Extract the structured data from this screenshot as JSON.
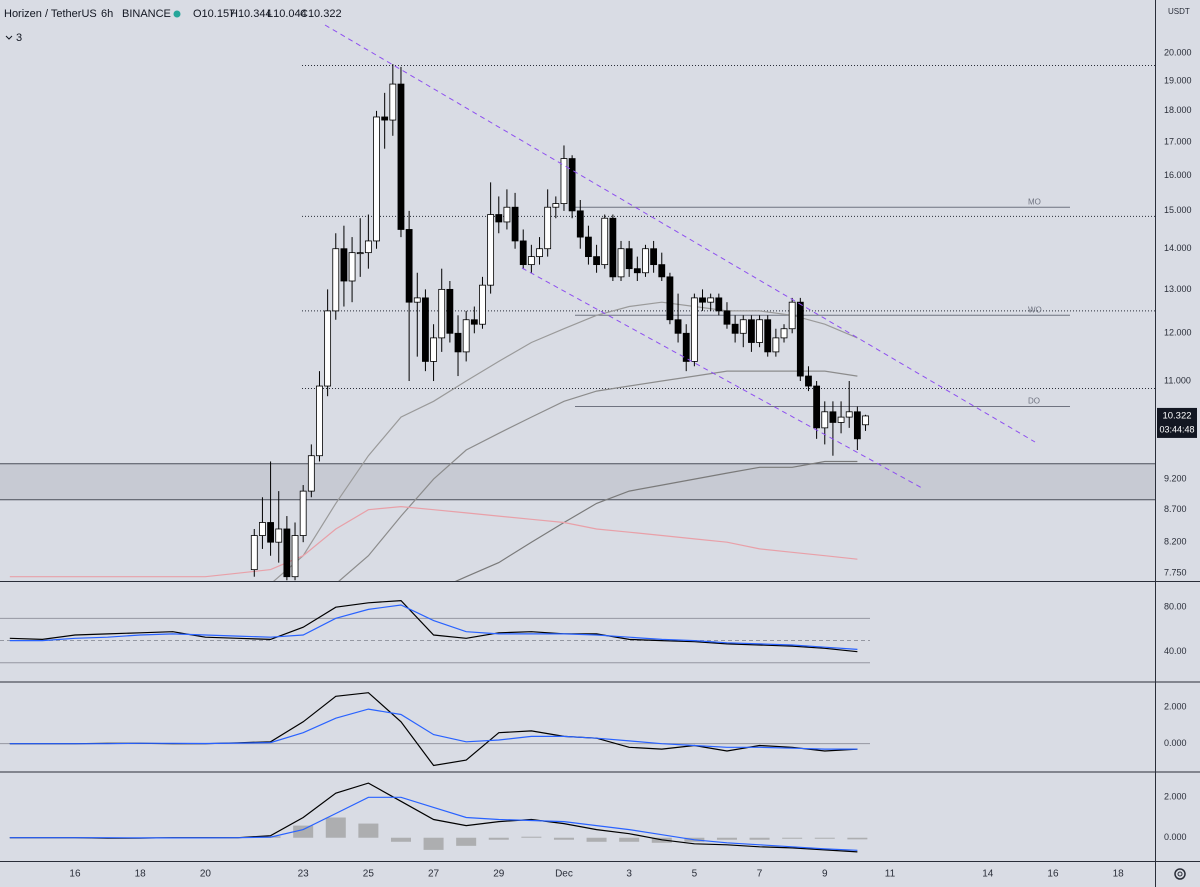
{
  "header": {
    "symbol": "Horizen / TetherUS",
    "interval": "6h",
    "exchange": "BINANCE",
    "ohlc": [
      "O10.157",
      "H10.344",
      "L10.044",
      "C10.322"
    ],
    "indicators_collapsed": "3"
  },
  "chart_data": [
    {
      "type": "candlestick",
      "log_scale": true,
      "up_color": "#ffffff",
      "down_color": "#000000",
      "y_unit": "USDT",
      "xlim": [
        13.7,
        49.13
      ],
      "ylim": [
        7.64,
        22.03
      ],
      "xticks": [
        16,
        18,
        20,
        23,
        25,
        27,
        29,
        {
          "value": 31,
          "label": "Dec"
        },
        {
          "value": 33,
          "label": "3"
        },
        {
          "value": 35,
          "label": "5"
        },
        {
          "value": 37,
          "label": "7"
        },
        {
          "value": 39,
          "label": "9"
        },
        {
          "value": 41,
          "label": "11"
        },
        {
          "value": 44,
          "label": "14"
        },
        {
          "value": 46,
          "label": "16"
        },
        {
          "value": 48,
          "label": "18"
        }
      ],
      "yticks": [
        {
          "value": 7.75,
          "label": "7.750"
        },
        {
          "value": 8.2,
          "label": "8.200"
        },
        {
          "value": 8.7,
          "label": "8.700"
        },
        {
          "value": 9.2,
          "label": "9.200"
        },
        {
          "value": 11,
          "label": "11.000"
        },
        {
          "value": 12,
          "label": "12.000"
        },
        {
          "value": 13,
          "label": "13.000"
        },
        {
          "value": 14,
          "label": "14.000"
        },
        {
          "value": 15,
          "label": "15.000"
        },
        {
          "value": 16,
          "label": "16.000"
        },
        {
          "value": 17,
          "label": "17.000"
        },
        {
          "value": 18,
          "label": "18.000"
        },
        {
          "value": 19,
          "label": "19.000"
        },
        {
          "value": 20,
          "label": "20.000"
        }
      ],
      "x": [
        21.5,
        21.75,
        22,
        22.25,
        22.5,
        22.75,
        23,
        23.25,
        23.5,
        23.75,
        24,
        24.25,
        24.5,
        24.75,
        25,
        25.25,
        25.5,
        25.75,
        26,
        26.25,
        26.5,
        26.75,
        27,
        27.25,
        27.5,
        27.75,
        28,
        28.25,
        28.5,
        28.75,
        29,
        29.25,
        29.5,
        29.75,
        30,
        30.25,
        30.5,
        30.75,
        31,
        31.25,
        31.5,
        31.75,
        32,
        32.25,
        32.5,
        32.75,
        33,
        33.25,
        33.5,
        33.75,
        34,
        34.25,
        34.5,
        34.75,
        35,
        35.25,
        35.5,
        35.75,
        36,
        36.25,
        36.5,
        36.75,
        37,
        37.25,
        37.5,
        37.75,
        38,
        38.25,
        38.5,
        38.75,
        39,
        39.25,
        39.5,
        39.75,
        40,
        40.25
      ],
      "open": [
        7.8,
        8.3,
        8.5,
        8.2,
        8.4,
        7.7,
        8.3,
        9.0,
        9.6,
        10.9,
        12.5,
        14.0,
        13.2,
        13.9,
        13.9,
        14.2,
        17.8,
        17.7,
        18.9,
        14.5,
        12.7,
        12.8,
        11.4,
        11.9,
        13.0,
        12.0,
        11.6,
        12.3,
        12.2,
        13.1,
        14.9,
        14.7,
        15.1,
        14.2,
        13.6,
        13.8,
        14.0,
        15.1,
        15.2,
        16.5,
        15.0,
        14.3,
        13.8,
        13.6,
        14.8,
        13.3,
        14.0,
        13.5,
        13.4,
        14.0,
        13.6,
        13.3,
        12.3,
        12.0,
        11.4,
        12.8,
        12.7,
        12.8,
        12.5,
        12.2,
        12.0,
        12.3,
        11.8,
        12.3,
        11.6,
        11.9,
        12.1,
        12.7,
        11.1,
        10.9,
        10.1,
        10.4,
        10.2,
        10.3,
        10.4,
        10.157
      ],
      "high": [
        8.4,
        8.9,
        9.5,
        9.0,
        8.6,
        8.5,
        9.1,
        9.8,
        11.2,
        13.0,
        14.4,
        14.6,
        14.3,
        14.8,
        14.9,
        18.0,
        18.6,
        19.6,
        19.5,
        15.0,
        13.4,
        13.0,
        12.2,
        13.5,
        13.2,
        12.4,
        12.5,
        12.6,
        13.3,
        15.8,
        15.4,
        15.6,
        15.5,
        14.5,
        14.1,
        14.3,
        15.6,
        15.4,
        16.9,
        16.6,
        15.3,
        14.6,
        14.1,
        14.9,
        14.9,
        14.2,
        14.2,
        13.8,
        14.1,
        14.2,
        13.9,
        13.4,
        12.9,
        12.2,
        12.9,
        13.0,
        12.9,
        12.9,
        12.7,
        12.4,
        12.4,
        12.4,
        12.4,
        12.4,
        12.1,
        12.2,
        12.8,
        12.8,
        11.3,
        11.0,
        10.6,
        10.6,
        10.6,
        11.0,
        10.5,
        10.344
      ],
      "low": [
        7.7,
        8.1,
        8.0,
        7.9,
        7.65,
        7.65,
        8.2,
        8.9,
        9.5,
        10.7,
        12.3,
        12.6,
        12.7,
        13.3,
        13.5,
        14.0,
        16.8,
        17.2,
        14.3,
        11.0,
        11.5,
        11.2,
        11.0,
        11.6,
        11.8,
        11.1,
        11.4,
        12.0,
        12.1,
        12.9,
        14.4,
        14.5,
        14.0,
        13.5,
        13.4,
        13.6,
        13.8,
        14.8,
        15.0,
        14.8,
        14.0,
        13.6,
        13.4,
        13.5,
        13.2,
        13.2,
        13.3,
        13.2,
        13.3,
        13.4,
        13.2,
        12.2,
        11.8,
        11.2,
        11.3,
        12.5,
        12.5,
        12.4,
        12.1,
        11.8,
        11.7,
        11.6,
        11.7,
        11.5,
        11.5,
        11.8,
        12.0,
        11.0,
        10.8,
        9.9,
        9.8,
        9.6,
        10.0,
        10.1,
        9.7,
        10.044
      ],
      "close": [
        8.3,
        8.5,
        8.2,
        8.4,
        7.7,
        8.3,
        9.0,
        9.6,
        10.9,
        12.5,
        14.0,
        13.2,
        13.9,
        13.9,
        14.2,
        17.8,
        17.7,
        18.9,
        14.5,
        12.7,
        12.8,
        11.4,
        11.9,
        13.0,
        12.0,
        11.6,
        12.3,
        12.2,
        13.1,
        14.9,
        14.7,
        15.1,
        14.2,
        13.6,
        13.8,
        14.0,
        15.1,
        15.2,
        16.5,
        15.0,
        14.3,
        13.8,
        13.6,
        14.8,
        13.3,
        14.0,
        13.5,
        13.4,
        14.0,
        13.6,
        13.3,
        12.3,
        12.0,
        11.4,
        12.8,
        12.7,
        12.8,
        12.5,
        12.2,
        12.0,
        12.3,
        11.8,
        12.3,
        11.6,
        11.9,
        12.1,
        12.7,
        11.1,
        10.9,
        10.1,
        10.4,
        10.2,
        10.3,
        10.4,
        9.9,
        10.322
      ],
      "line_x": [
        14,
        15,
        16,
        17,
        18,
        19,
        20,
        21,
        22,
        23,
        24,
        25,
        26,
        27,
        28,
        29,
        30,
        31,
        32,
        33,
        34,
        35,
        36,
        37,
        38,
        39,
        40
      ],
      "lines": [
        {
          "color": "#9a9a9a",
          "values": [
            7.5,
            7.5,
            7.5,
            7.5,
            7.5,
            7.5,
            7.5,
            7.5,
            7.6,
            8.0,
            8.8,
            9.6,
            10.3,
            10.6,
            11.0,
            11.4,
            11.8,
            12.1,
            12.4,
            12.6,
            12.7,
            12.6,
            12.5,
            12.5,
            12.4,
            12.2,
            11.9
          ]
        },
        {
          "color": "#8c8c8c",
          "values": [
            7.4,
            7.4,
            7.4,
            7.4,
            7.4,
            7.4,
            7.4,
            7.4,
            7.4,
            7.5,
            7.6,
            8.0,
            8.6,
            9.2,
            9.7,
            10.0,
            10.3,
            10.6,
            10.8,
            10.9,
            11.0,
            11.1,
            11.2,
            11.2,
            11.2,
            11.2,
            11.1
          ]
        },
        {
          "color": "#7a7a7a",
          "values": [
            7.3,
            7.3,
            7.3,
            7.3,
            7.3,
            7.3,
            7.3,
            7.3,
            7.3,
            7.3,
            7.3,
            7.3,
            7.4,
            7.5,
            7.7,
            7.9,
            8.2,
            8.5,
            8.8,
            9.0,
            9.1,
            9.2,
            9.3,
            9.4,
            9.4,
            9.5,
            9.5
          ]
        },
        {
          "color": "#e8a0a8",
          "values": [
            7.7,
            7.7,
            7.7,
            7.7,
            7.7,
            7.7,
            7.7,
            7.75,
            7.8,
            8.0,
            8.4,
            8.7,
            8.75,
            8.7,
            8.65,
            8.6,
            8.55,
            8.5,
            8.4,
            8.35,
            8.3,
            8.25,
            8.2,
            8.1,
            8.05,
            8.0,
            7.95
          ]
        }
      ],
      "levels": [
        19.55,
        14.85,
        12.5,
        10.85
      ],
      "rays": [
        {
          "label": "MO",
          "value": 15.1
        },
        {
          "label": "WO",
          "value": 12.4
        },
        {
          "label": "DO",
          "value": 10.5
        }
      ],
      "zone": [
        8.86,
        9.46
      ],
      "countdown": "03:44:48"
    },
    {
      "type": "line",
      "ylim": [
        13.6,
        101.8
      ],
      "yticks": [
        {
          "value": 40,
          "label": "40.00"
        },
        {
          "value": 80,
          "label": "80.00"
        }
      ],
      "bands": [
        70,
        50,
        30
      ],
      "x": [
        14,
        15,
        16,
        17,
        18,
        19,
        20,
        21,
        22,
        23,
        24,
        25,
        26,
        27,
        28,
        29,
        30,
        31,
        32,
        33,
        34,
        35,
        36,
        37,
        38,
        39,
        40
      ],
      "series": [
        {
          "color": "#000000",
          "values": [
            52,
            51,
            55,
            56,
            57,
            58,
            53,
            52,
            51,
            62,
            80,
            84,
            86,
            55,
            52,
            57,
            58,
            56,
            56,
            51,
            50,
            49,
            47,
            46,
            45,
            43,
            40
          ]
        },
        {
          "color": "#2962ff",
          "values": [
            50,
            50,
            52,
            53,
            55,
            56,
            55,
            54,
            53,
            55,
            70,
            78,
            82,
            68,
            58,
            56,
            56,
            56,
            55,
            53,
            51,
            50,
            48,
            47,
            46,
            44,
            42
          ]
        }
      ]
    },
    {
      "type": "line",
      "ylim": [
        -1.5,
        3.33
      ],
      "yticks": [
        {
          "value": 0,
          "label": "0.000"
        },
        {
          "value": 2,
          "label": "2.000"
        }
      ],
      "bands": [
        0
      ],
      "x": [
        14,
        15,
        16,
        17,
        18,
        19,
        20,
        21,
        22,
        23,
        24,
        25,
        26,
        27,
        28,
        29,
        30,
        31,
        32,
        33,
        34,
        35,
        36,
        37,
        38,
        39,
        40
      ],
      "series": [
        {
          "color": "#000000",
          "values": [
            0,
            0,
            0,
            0.02,
            0.02,
            0,
            0,
            0.05,
            0.1,
            1.2,
            2.6,
            2.8,
            1.2,
            -1.2,
            -0.9,
            0.6,
            0.7,
            0.4,
            0.3,
            -0.2,
            -0.3,
            -0.1,
            -0.4,
            -0.1,
            -0.2,
            -0.4,
            -0.3
          ]
        },
        {
          "color": "#2962ff",
          "values": [
            0,
            0,
            0,
            0,
            0.02,
            0.02,
            0.01,
            0.03,
            0.06,
            0.6,
            1.4,
            1.9,
            1.6,
            0.5,
            0.1,
            0.2,
            0.4,
            0.4,
            0.3,
            0.15,
            0,
            -0.1,
            -0.2,
            -0.2,
            -0.25,
            -0.3,
            -0.3
          ]
        }
      ]
    },
    {
      "type": "line",
      "ylim": [
        -1.15,
        3.2
      ],
      "yticks": [
        {
          "value": 0,
          "label": "0.000"
        },
        {
          "value": 2,
          "label": "2.000"
        }
      ],
      "x": [
        14,
        15,
        16,
        17,
        18,
        19,
        20,
        21,
        22,
        23,
        24,
        25,
        26,
        27,
        28,
        29,
        30,
        31,
        32,
        33,
        34,
        35,
        36,
        37,
        38,
        39,
        40
      ],
      "histogram": [
        0,
        0,
        0,
        -0.02,
        -0.01,
        0.01,
        0.01,
        0,
        0.07,
        0.6,
        1.0,
        0.7,
        -0.2,
        -0.6,
        -0.4,
        -0.1,
        0.05,
        -0.1,
        -0.2,
        -0.2,
        -0.25,
        -0.2,
        -0.1,
        -0.1,
        -0.05,
        -0.05,
        -0.08
      ],
      "histogram_color": "#9a9a9a",
      "series": [
        {
          "color": "#000000",
          "values": [
            0,
            0,
            0,
            -0.02,
            -0.02,
            0,
            0,
            0,
            0.1,
            1.0,
            2.2,
            2.7,
            1.8,
            0.9,
            0.6,
            0.8,
            0.9,
            0.7,
            0.4,
            0.2,
            -0.1,
            -0.3,
            -0.35,
            -0.45,
            -0.5,
            -0.6,
            -0.7
          ]
        },
        {
          "color": "#2962ff",
          "values": [
            0,
            0,
            0,
            0,
            -0.01,
            -0.01,
            -0.01,
            0,
            0.03,
            0.4,
            1.2,
            2.0,
            2.0,
            1.5,
            1.0,
            0.9,
            0.85,
            0.8,
            0.6,
            0.4,
            0.15,
            -0.1,
            -0.25,
            -0.35,
            -0.45,
            -0.55,
            -0.62
          ]
        }
      ]
    }
  ]
}
